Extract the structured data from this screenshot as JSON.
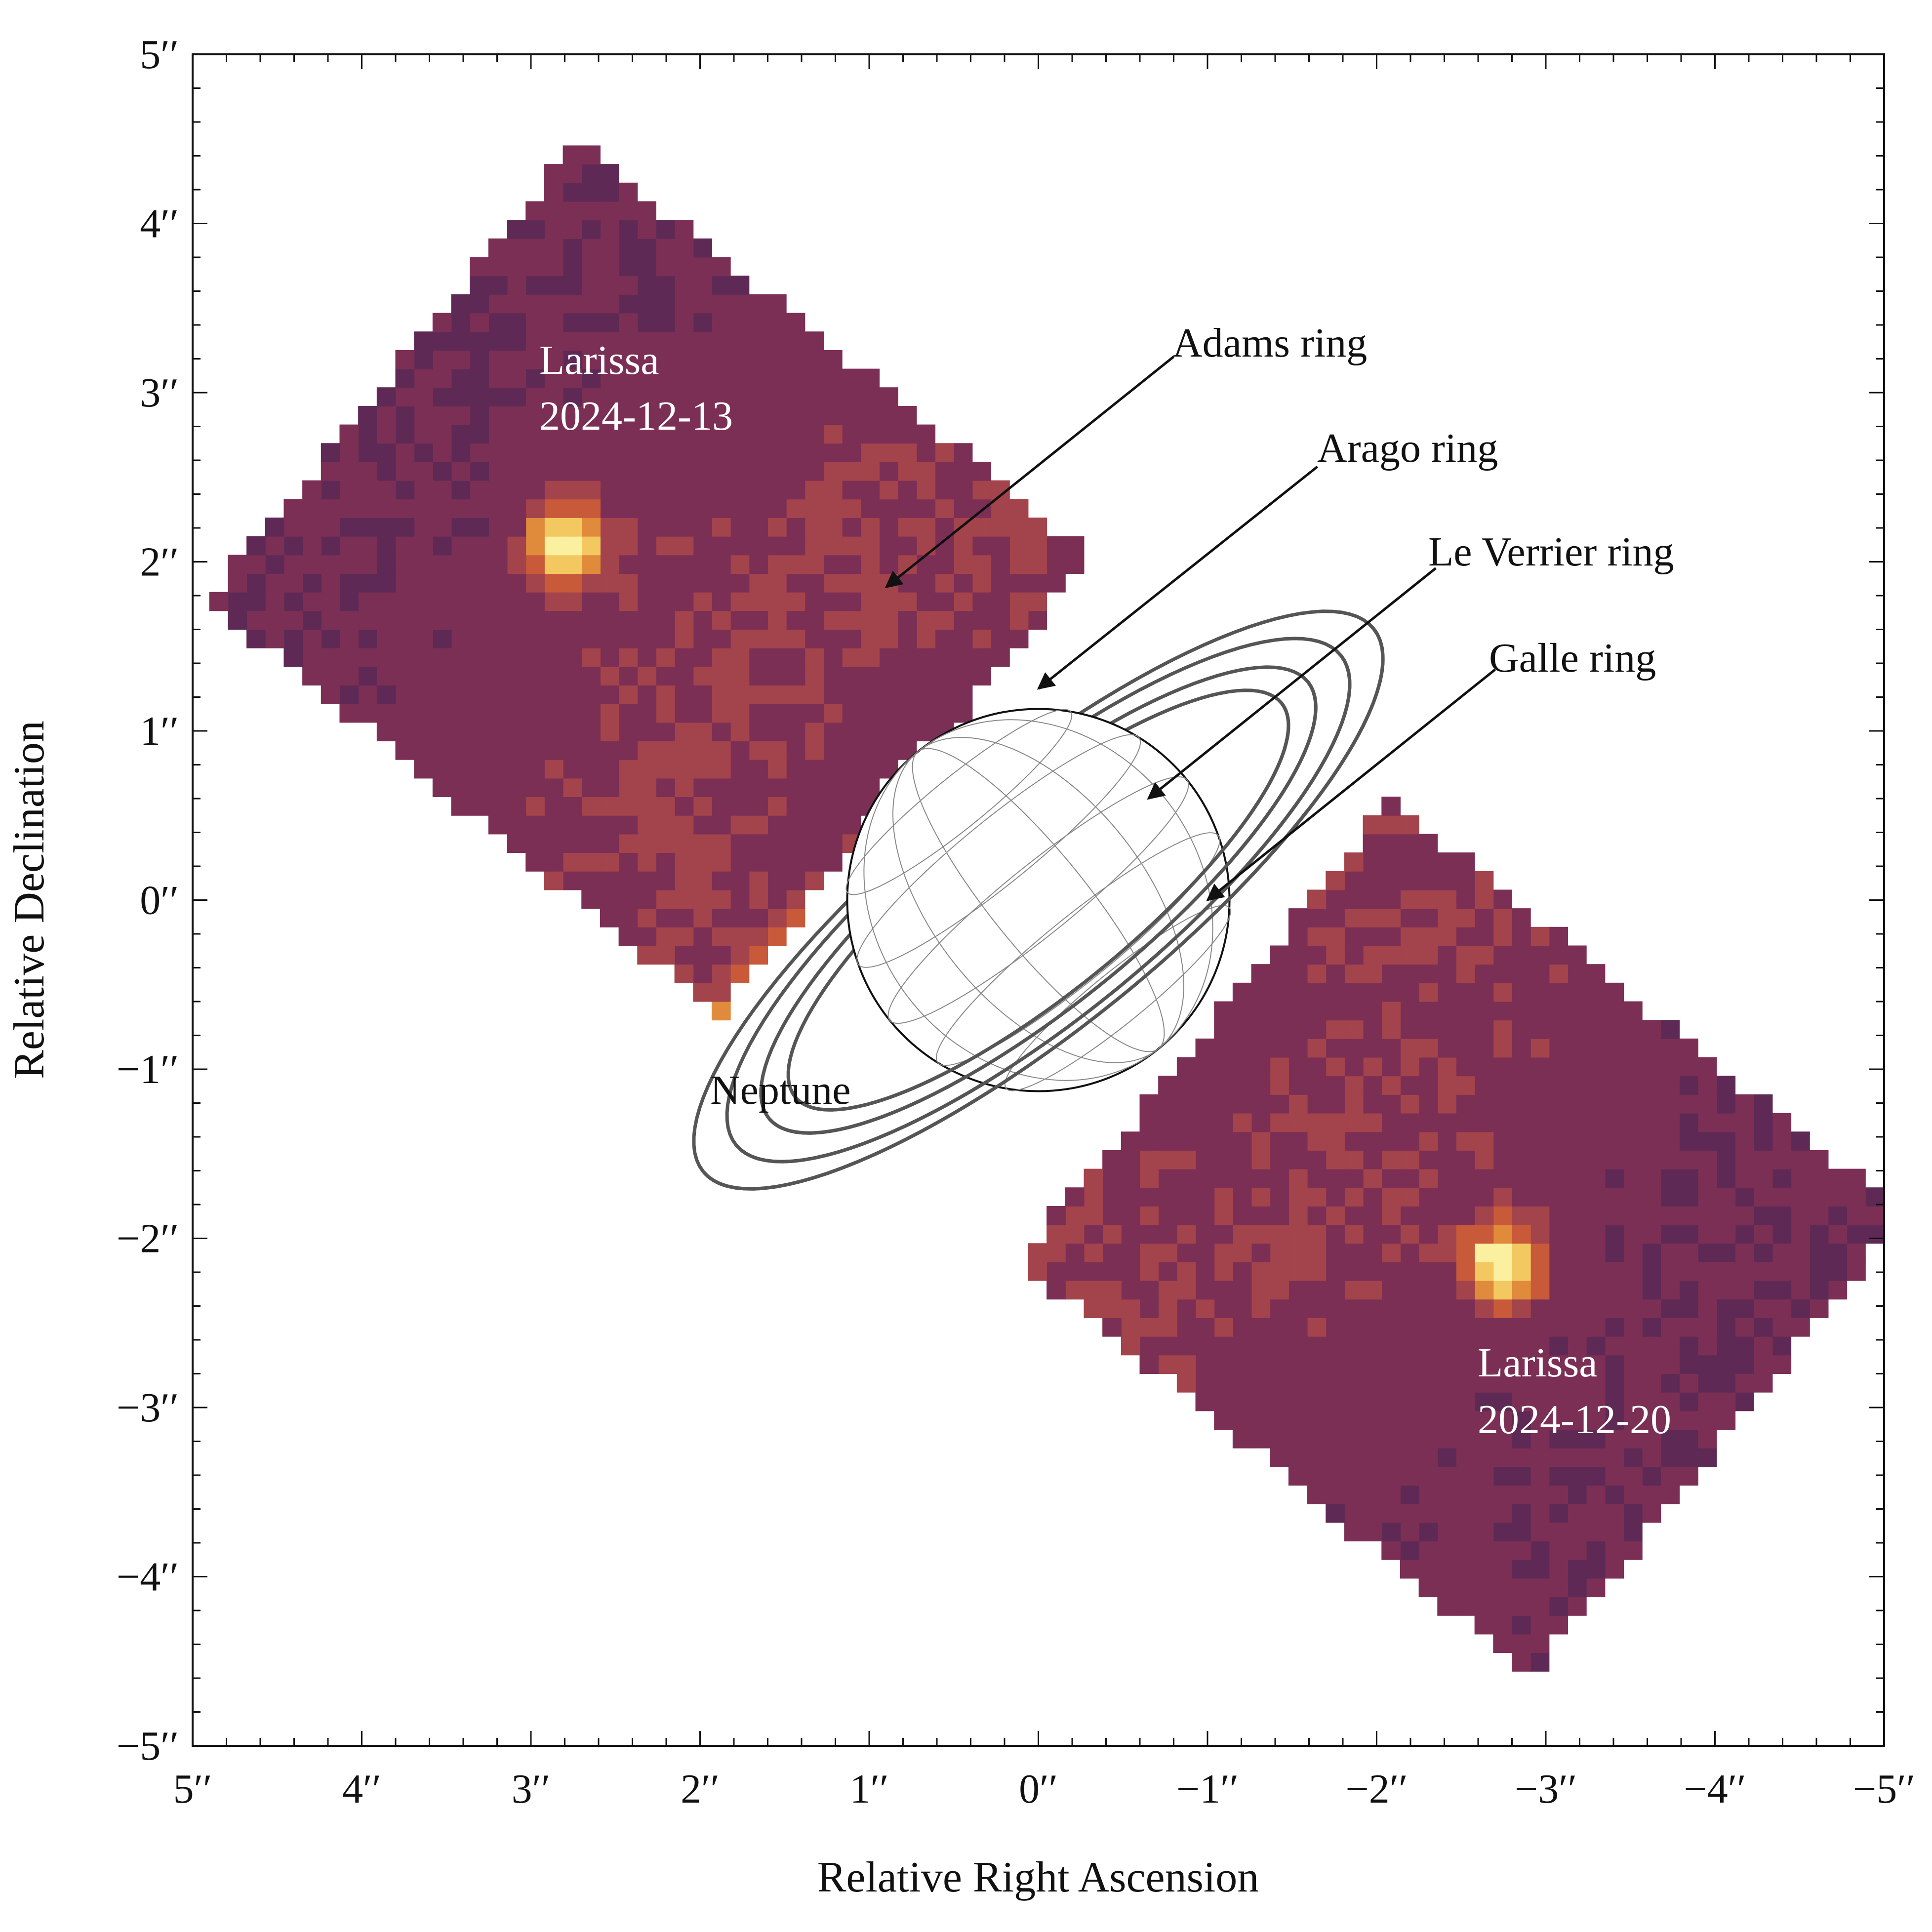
{
  "chart_data": {
    "type": "heatmap",
    "xlabel": "Relative Right Ascension",
    "ylabel": "Relative Declination",
    "xlim": [
      5,
      -5
    ],
    "ylim": [
      -5,
      5
    ],
    "x_ticks": [
      "5′′",
      "4′′",
      "3′′",
      "2′′",
      "1′′",
      "0′′",
      "−1′′",
      "−2′′",
      "−3′′",
      "−4′′",
      "−5′′"
    ],
    "y_ticks": [
      "5′′",
      "4′′",
      "3′′",
      "2′′",
      "1′′",
      "0′′",
      "−1′′",
      "−2′′",
      "−3′′",
      "−4′′",
      "−5′′"
    ],
    "colormap": [
      "#140c14",
      "#3a2146",
      "#5e2a55",
      "#7c2f55",
      "#a3434b",
      "#c85a3a",
      "#e08a3c",
      "#f3c860",
      "#fbf0a0"
    ],
    "planet": {
      "label": "Neptune",
      "center": [
        0,
        0
      ],
      "radius_arcsec": 1.13
    },
    "rings": [
      {
        "name": "Adams ring",
        "semi_major": 2.55,
        "semi_minor": 0.75,
        "tilt_deg": 39
      },
      {
        "name": "Arago ring",
        "semi_major": 2.3,
        "semi_minor": 0.7,
        "tilt_deg": 39
      },
      {
        "name": "Le Verrier ring",
        "semi_major": 2.05,
        "semi_minor": 0.62,
        "tilt_deg": 39
      },
      {
        "name": "Galle ring",
        "semi_major": 1.85,
        "semi_minor": 0.55,
        "tilt_deg": 39
      }
    ],
    "ring_labels": [
      {
        "text": "Adams ring",
        "label_at": [
          -0.8,
          3.3
        ],
        "arrow_to": [
          0.9,
          1.85
        ]
      },
      {
        "text": "Arago ring",
        "label_at": [
          -1.65,
          2.65
        ],
        "arrow_to": [
          0.0,
          1.25
        ]
      },
      {
        "text": "Le Verrier ring",
        "label_at": [
          -2.35,
          2.05
        ],
        "arrow_to": [
          -0.65,
          0.6
        ]
      },
      {
        "text": "Galle ring",
        "label_at": [
          -2.7,
          1.45
        ],
        "arrow_to": [
          -1.0,
          0.0
        ]
      }
    ],
    "moon_detections": [
      {
        "name": "Larissa",
        "date": "2024-12-13",
        "position": [
          2.8,
          2.1
        ]
      },
      {
        "name": "Larissa",
        "date": "2024-12-20",
        "position": [
          -2.75,
          -2.15
        ]
      }
    ],
    "fields_of_view": [
      {
        "center": [
          2.3,
          1.9
        ],
        "size": [
          3.9,
          3.5
        ],
        "rotation_deg": -39
      },
      {
        "center": [
          -2.5,
          -2.0
        ],
        "size": [
          3.9,
          3.5
        ],
        "rotation_deg": -39
      }
    ]
  },
  "labels": {
    "planet": "Neptune",
    "ring_adams": "Adams ring",
    "ring_arago": "Arago ring",
    "ring_leverrier": "Le Verrier ring",
    "ring_galle": "Galle ring",
    "moon1_name": "Larissa",
    "moon1_date": "2024-12-13",
    "moon2_name": "Larissa",
    "moon2_date": "2024-12-20"
  }
}
